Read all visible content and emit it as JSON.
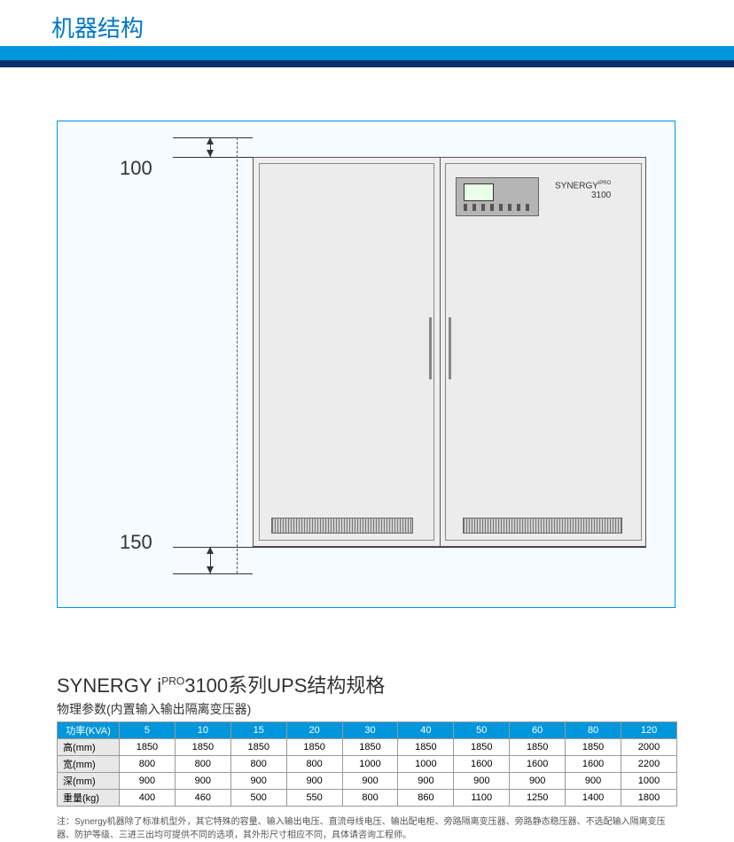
{
  "header": {
    "title": "机器结构"
  },
  "diagram": {
    "top_dim": "100",
    "bottom_dim": "150",
    "brand_line1": "SYNERGY",
    "brand_line2": "3100"
  },
  "spec": {
    "title_pre": "SYNERGY i",
    "title_sup": "PRO",
    "title_post": "3100系列UPS结构规格",
    "subtitle": "物理参数(内置输入输出隔离变压器)",
    "header_label": "功率(KVA)",
    "columns": [
      "5",
      "10",
      "15",
      "20",
      "30",
      "40",
      "50",
      "60",
      "80",
      "120"
    ],
    "rows": [
      {
        "label": "高(mm)",
        "values": [
          "1850",
          "1850",
          "1850",
          "1850",
          "1850",
          "1850",
          "1850",
          "1850",
          "1850",
          "2000"
        ]
      },
      {
        "label": "宽(mm)",
        "values": [
          "800",
          "800",
          "800",
          "800",
          "1000",
          "1000",
          "1600",
          "1600",
          "1600",
          "2200"
        ]
      },
      {
        "label": "深(mm)",
        "values": [
          "900",
          "900",
          "900",
          "900",
          "900",
          "900",
          "900",
          "900",
          "900",
          "1000"
        ]
      },
      {
        "label": "重量(kg)",
        "values": [
          "400",
          "460",
          "500",
          "550",
          "800",
          "860",
          "1100",
          "1250",
          "1400",
          "1800"
        ]
      }
    ],
    "note": "注：Synergy机器除了标准机型外，其它特殊的容量、输入输出电压、直流母线电压、输出配电柜、旁路隔离变压器、旁路静态稳压器、不选配输入隔离变压器、防护等级、三进三出均可提供不同的选项，其外形尺寸相应不同，具体请咨询工程师。"
  },
  "style": {
    "accent": "#0096db",
    "navy": "#0a2f6b",
    "frame_bg": "#f5fbfe",
    "cabinet_bg": "#eeeeee"
  }
}
